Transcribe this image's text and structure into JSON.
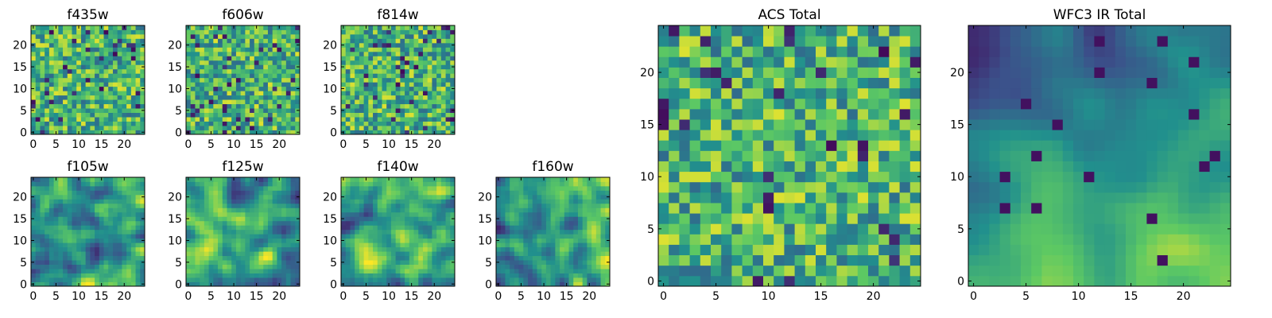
{
  "colormap": "viridis",
  "colormap_stops": [
    "#440154",
    "#3b528b",
    "#21908d",
    "#5dc963",
    "#fde725"
  ],
  "chart_data": [
    {
      "type": "heatmap",
      "title": "f435w",
      "size": 25,
      "xticks": [
        0,
        5,
        10,
        15,
        20
      ],
      "yticks": [
        0,
        5,
        10,
        15,
        20
      ],
      "xlim": [
        0,
        24
      ],
      "ylim": [
        0,
        24
      ],
      "pattern": "speckle",
      "seed": 11
    },
    {
      "type": "heatmap",
      "title": "f606w",
      "size": 25,
      "xticks": [
        0,
        5,
        10,
        15,
        20
      ],
      "yticks": [
        0,
        5,
        10,
        15,
        20
      ],
      "xlim": [
        0,
        24
      ],
      "ylim": [
        0,
        24
      ],
      "pattern": "speckle",
      "seed": 23
    },
    {
      "type": "heatmap",
      "title": "f814w",
      "size": 25,
      "xticks": [
        0,
        5,
        10,
        15,
        20
      ],
      "yticks": [
        0,
        5,
        10,
        15,
        20
      ],
      "xlim": [
        0,
        24
      ],
      "ylim": [
        0,
        24
      ],
      "pattern": "speckle",
      "seed": 37
    },
    {
      "type": "heatmap",
      "title": "f105w",
      "size": 25,
      "xticks": [
        0,
        5,
        10,
        15,
        20
      ],
      "yticks": [
        0,
        5,
        10,
        15,
        20
      ],
      "xlim": [
        0,
        24
      ],
      "ylim": [
        0,
        24
      ],
      "pattern": "smooth",
      "seed": 41
    },
    {
      "type": "heatmap",
      "title": "f125w",
      "size": 25,
      "xticks": [
        0,
        5,
        10,
        15,
        20
      ],
      "yticks": [
        0,
        5,
        10,
        15,
        20
      ],
      "xlim": [
        0,
        24
      ],
      "ylim": [
        0,
        24
      ],
      "pattern": "smooth",
      "seed": 53
    },
    {
      "type": "heatmap",
      "title": "f140w",
      "size": 25,
      "xticks": [
        0,
        5,
        10,
        15,
        20
      ],
      "yticks": [
        0,
        5,
        10,
        15,
        20
      ],
      "xlim": [
        0,
        24
      ],
      "ylim": [
        0,
        24
      ],
      "pattern": "smooth",
      "seed": 67
    },
    {
      "type": "heatmap",
      "title": "f160w",
      "size": 25,
      "xticks": [
        0,
        5,
        10,
        15,
        20
      ],
      "yticks": [
        0,
        5,
        10,
        15,
        20
      ],
      "xlim": [
        0,
        24
      ],
      "ylim": [
        0,
        24
      ],
      "pattern": "smooth-dark",
      "seed": 79
    },
    {
      "type": "heatmap",
      "title": "ACS Total",
      "size": 25,
      "xticks": [
        0,
        5,
        10,
        15,
        20
      ],
      "yticks": [
        0,
        5,
        10,
        15,
        20
      ],
      "xlim": [
        0,
        24
      ],
      "ylim": [
        0,
        24
      ],
      "pattern": "speckle",
      "seed": 97
    },
    {
      "type": "heatmap",
      "title": "WFC3 IR Total",
      "size": 25,
      "xticks": [
        0,
        5,
        10,
        15,
        20
      ],
      "yticks": [
        0,
        5,
        10,
        15,
        20
      ],
      "xlim": [
        0,
        24
      ],
      "ylim": [
        0,
        24
      ],
      "pattern": "gradient",
      "seed": 101
    }
  ]
}
